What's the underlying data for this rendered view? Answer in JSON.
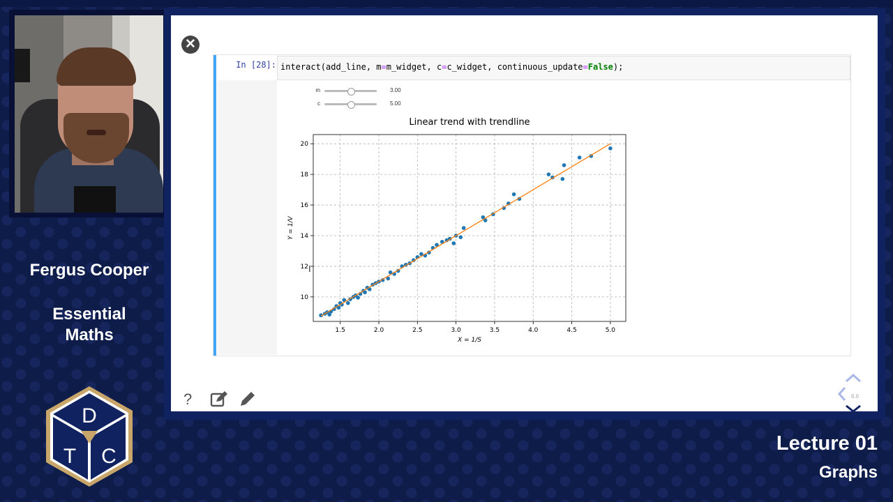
{
  "presenter": {
    "name": "Fergus Cooper"
  },
  "course": {
    "line1": "Essential",
    "line2": "Maths"
  },
  "logo": {
    "letters": [
      "D",
      "T",
      "C"
    ]
  },
  "lecture": {
    "title": "Lecture 01",
    "topic": "Graphs"
  },
  "notebook": {
    "prompt": "In [28]:",
    "code": {
      "part1": "interact(add_line, m",
      "eq1": "=",
      "part2": "m_widget, c",
      "eq2": "=",
      "part3": "c_widget, continuous_update",
      "eq3": "=",
      "kw": "False",
      "part4": ");"
    },
    "sliders": [
      {
        "label": "m",
        "value": "3.00",
        "fraction": 0.5
      },
      {
        "label": "c",
        "value": "5.00",
        "fraction": 0.5
      }
    ]
  },
  "slide_nav": {
    "number": "6.6"
  },
  "icons": {
    "close": "close-icon",
    "help": "question-icon",
    "edit": "edit-icon",
    "pencil": "pencil-icon"
  },
  "colors": {
    "accent": "#42a5f5",
    "scatter": "#1f77b4",
    "trend": "#ff7f0e",
    "background": "#0e1c4a"
  },
  "chart_data": {
    "type": "scatter",
    "title": "Linear trend with trendline",
    "xlabel": "X = 1/S",
    "ylabel": "Y = 1/V",
    "xlim": [
      1.15,
      5.2
    ],
    "ylim": [
      8.4,
      20.6
    ],
    "xticks": [
      1.5,
      2.0,
      2.5,
      3.0,
      3.5,
      4.0,
      4.5,
      5.0
    ],
    "yticks": [
      10,
      12,
      14,
      16,
      18,
      20
    ],
    "xtick_labels": [
      "1.5",
      "2.0",
      "2.5",
      "3.0",
      "3.5",
      "4.0",
      "4.5",
      "5.0"
    ],
    "ytick_labels": [
      "10",
      "12",
      "14",
      "16",
      "18",
      "20"
    ],
    "grid": true,
    "points": [
      [
        1.25,
        8.8
      ],
      [
        1.3,
        8.9
      ],
      [
        1.33,
        9.0
      ],
      [
        1.36,
        8.85
      ],
      [
        1.38,
        9.05
      ],
      [
        1.42,
        9.2
      ],
      [
        1.45,
        9.4
      ],
      [
        1.48,
        9.3
      ],
      [
        1.5,
        9.6
      ],
      [
        1.52,
        9.5
      ],
      [
        1.55,
        9.8
      ],
      [
        1.6,
        9.6
      ],
      [
        1.63,
        9.85
      ],
      [
        1.67,
        10.0
      ],
      [
        1.7,
        10.1
      ],
      [
        1.73,
        9.95
      ],
      [
        1.76,
        10.2
      ],
      [
        1.8,
        10.4
      ],
      [
        1.82,
        10.3
      ],
      [
        1.85,
        10.6
      ],
      [
        1.88,
        10.5
      ],
      [
        1.92,
        10.8
      ],
      [
        1.96,
        10.9
      ],
      [
        2.0,
        11.0
      ],
      [
        2.05,
        11.1
      ],
      [
        2.12,
        11.2
      ],
      [
        2.15,
        11.6
      ],
      [
        2.2,
        11.5
      ],
      [
        2.25,
        11.7
      ],
      [
        2.3,
        12.0
      ],
      [
        2.35,
        12.1
      ],
      [
        2.4,
        12.2
      ],
      [
        2.45,
        12.4
      ],
      [
        2.5,
        12.6
      ],
      [
        2.55,
        12.8
      ],
      [
        2.6,
        12.7
      ],
      [
        2.65,
        12.9
      ],
      [
        2.7,
        13.2
      ],
      [
        2.75,
        13.4
      ],
      [
        2.82,
        13.6
      ],
      [
        2.88,
        13.7
      ],
      [
        2.92,
        13.8
      ],
      [
        2.97,
        13.5
      ],
      [
        3.0,
        14.0
      ],
      [
        3.06,
        13.9
      ],
      [
        3.1,
        14.5
      ],
      [
        3.35,
        15.2
      ],
      [
        3.38,
        15.0
      ],
      [
        3.48,
        15.4
      ],
      [
        3.62,
        15.8
      ],
      [
        3.68,
        16.1
      ],
      [
        3.75,
        16.7
      ],
      [
        3.82,
        16.4
      ],
      [
        4.2,
        18.0
      ],
      [
        4.25,
        17.8
      ],
      [
        4.38,
        17.7
      ],
      [
        4.4,
        18.6
      ],
      [
        4.6,
        19.1
      ],
      [
        4.75,
        19.2
      ],
      [
        5.0,
        19.7
      ]
    ],
    "trendline": {
      "m": 3.0,
      "c": 5.0,
      "x_range": [
        1.25,
        5.0
      ]
    }
  }
}
